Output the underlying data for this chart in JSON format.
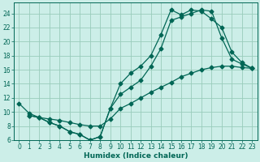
{
  "xlabel": "Humidex (Indice chaleur)",
  "bg_color": "#cceee8",
  "grid_color": "#99ccbb",
  "line_color": "#006655",
  "xlim": [
    -0.5,
    23.5
  ],
  "ylim": [
    6,
    25.5
  ],
  "xticks": [
    0,
    1,
    2,
    3,
    4,
    5,
    6,
    7,
    8,
    9,
    10,
    11,
    12,
    13,
    14,
    15,
    16,
    17,
    18,
    19,
    20,
    21,
    22,
    23
  ],
  "yticks": [
    6,
    8,
    10,
    12,
    14,
    16,
    18,
    20,
    22,
    24
  ],
  "line1_x": [
    1,
    2,
    3,
    4,
    5,
    6,
    7,
    8,
    9,
    10,
    11,
    12,
    13,
    14,
    15,
    16,
    17,
    18,
    19,
    20,
    21,
    22,
    23
  ],
  "line1_y": [
    9.5,
    9.2,
    8.5,
    8.0,
    7.2,
    6.8,
    6.0,
    6.5,
    10.5,
    14.0,
    15.5,
    16.5,
    18.0,
    21.0,
    24.5,
    23.8,
    24.5,
    24.3,
    23.2,
    22.0,
    18.5,
    17.0,
    16.2
  ],
  "line2_x": [
    1,
    2,
    3,
    4,
    5,
    6,
    7,
    8,
    9,
    10,
    11,
    12,
    13,
    14,
    15,
    16,
    17,
    18,
    19,
    20,
    21,
    22,
    23
  ],
  "line2_y": [
    9.5,
    9.2,
    8.5,
    8.0,
    7.2,
    6.8,
    6.0,
    6.5,
    10.5,
    12.5,
    13.5,
    14.5,
    16.5,
    19.0,
    23.0,
    23.5,
    24.0,
    24.5,
    24.3,
    20.5,
    17.5,
    16.8,
    16.2
  ],
  "line3_x": [
    0,
    1,
    2,
    3,
    4,
    5,
    6,
    7,
    8,
    9,
    10,
    11,
    12,
    13,
    14,
    15,
    16,
    17,
    18,
    19,
    20,
    21,
    22,
    23
  ],
  "line3_y": [
    11.2,
    9.8,
    9.2,
    9.0,
    8.8,
    8.5,
    8.2,
    8.0,
    8.0,
    9.0,
    10.5,
    11.2,
    12.0,
    12.8,
    13.5,
    14.2,
    15.0,
    15.5,
    16.0,
    16.3,
    16.5,
    16.5,
    16.3,
    16.2
  ]
}
